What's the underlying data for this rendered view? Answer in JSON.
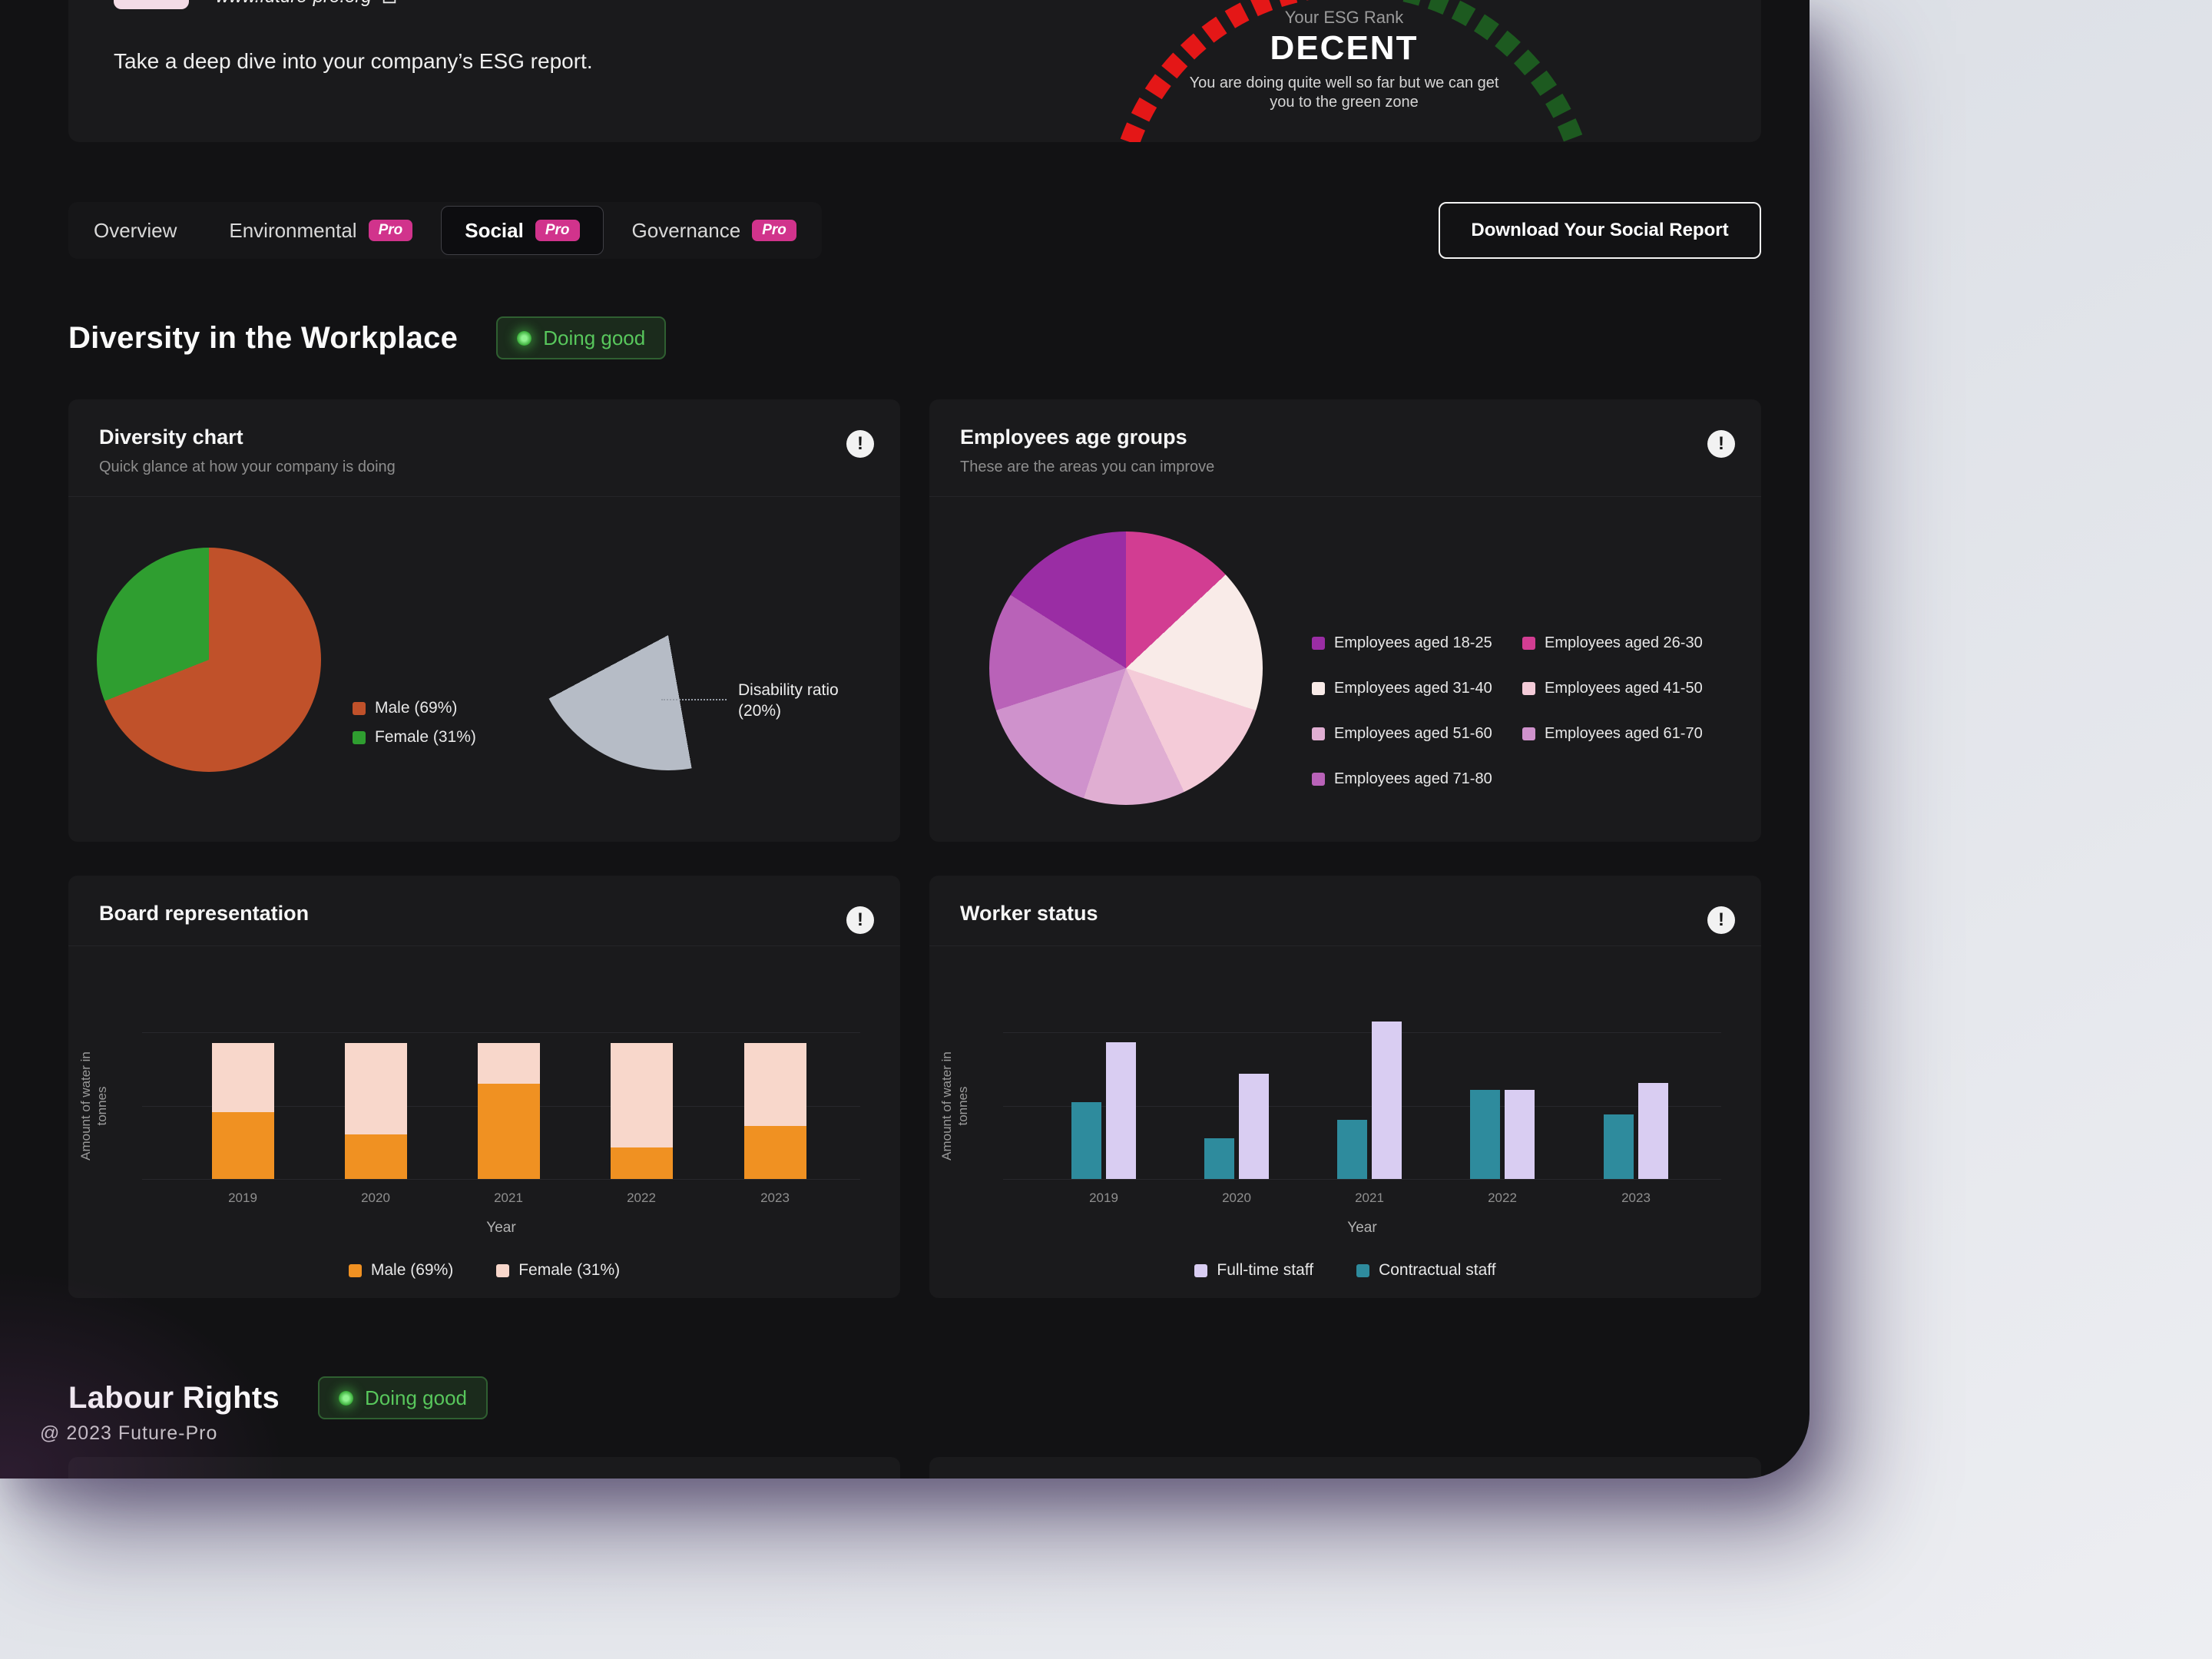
{
  "colors": {
    "accent_pink": "#d1338c",
    "status_green": "#58c75c",
    "panel_bg": "#121214",
    "card_bg": "#1a1a1c",
    "gauge_red": "#e41717",
    "gauge_green": "#1d5a20"
  },
  "header": {
    "site_url": "www.future-pro.org",
    "tagline": "Take a deep dive into your company’s ESG report.",
    "gauge": {
      "label": "Your ESG Rank",
      "rank": "DECENT",
      "description": "You are doing quite well so far but we can get you to the green zone"
    }
  },
  "tabs": {
    "pro_label": "Pro",
    "items": [
      {
        "label": "Overview",
        "pro": false,
        "active": false
      },
      {
        "label": "Environmental",
        "pro": true,
        "active": false
      },
      {
        "label": "Social",
        "pro": true,
        "active": true
      },
      {
        "label": "Governance",
        "pro": true,
        "active": false
      }
    ],
    "download_button_label": "Download Your Social Report"
  },
  "sections": {
    "diversity": {
      "title": "Diversity in the Workplace",
      "badge": "Doing good"
    },
    "labour": {
      "title": "Labour Rights",
      "badge": "Doing good"
    }
  },
  "cards": {
    "diversity_chart": {
      "title": "Diversity chart",
      "subtitle": "Quick glance at how your company is doing",
      "disability_label": "Disability ratio (20%)"
    },
    "age_groups": {
      "title": "Employees age groups",
      "subtitle": "These are the areas you can improve"
    },
    "board": {
      "title": "Board representation"
    },
    "worker": {
      "title": "Worker status"
    }
  },
  "footer": "@ 2023 Future-Pro",
  "chart_data": [
    {
      "id": "gender_pie",
      "type": "pie",
      "title": "Diversity chart",
      "slices": [
        {
          "label": "Male (69%)",
          "value": 69,
          "color": "#c0512a"
        },
        {
          "label": "Female (31%)",
          "value": 31,
          "color": "#2f9e30"
        }
      ]
    },
    {
      "id": "disability_wedge",
      "type": "pie",
      "title": "Disability ratio",
      "start_angle": 170,
      "slices": [
        {
          "label": "Disability ratio (20%)",
          "value": 20,
          "color": "#b6bcc6"
        },
        {
          "label": "",
          "value": 80,
          "color": "transparent"
        }
      ]
    },
    {
      "id": "age_pie",
      "type": "pie",
      "title": "Employees age groups",
      "slices": [
        {
          "label": "Employees aged 26-30",
          "value": 13,
          "color": "#d23d92"
        },
        {
          "label": "Employees aged 31-40",
          "value": 17,
          "color": "#f9ebe8"
        },
        {
          "label": "Employees aged 41-50",
          "value": 13,
          "color": "#f4cbd8"
        },
        {
          "label": "Employees aged 51-60",
          "value": 12,
          "color": "#e0aed2"
        },
        {
          "label": "Employees aged 61-70",
          "value": 15,
          "color": "#cf92cc"
        },
        {
          "label": "Employees aged 71-80",
          "value": 14,
          "color": "#b962b8"
        },
        {
          "label": "Employees aged 18-25",
          "value": 16,
          "color": "#9a2da4"
        }
      ],
      "legend_labels": [
        "Employees aged 18-25",
        "Employees aged 26-30",
        "Employees aged 31-40",
        "Employees aged 41-50",
        "Employees aged 51-60",
        "Employees aged 61-70",
        "Employees aged 71-80"
      ]
    },
    {
      "id": "board_bars",
      "type": "bar",
      "subtype": "stacked",
      "title": "Board representation",
      "categories": [
        "2019",
        "2020",
        "2021",
        "2022",
        "2023"
      ],
      "xlabel": "Year",
      "ylabel": "Amount of water in tonnes",
      "unit": "percent",
      "series": [
        {
          "name": "Male (69%)",
          "color": "#f09122",
          "values": [
            49,
            33,
            70,
            23,
            39
          ]
        },
        {
          "name": "Female (31%)",
          "color": "#f8d7cb",
          "values": [
            51,
            67,
            30,
            77,
            61
          ]
        }
      ]
    },
    {
      "id": "worker_bars",
      "type": "bar",
      "subtype": "grouped",
      "title": "Worker status",
      "categories": [
        "2019",
        "2020",
        "2021",
        "2022",
        "2023"
      ],
      "xlabel": "Year",
      "ylabel": "Amount of water in tonnes",
      "series": [
        {
          "name": "Full-time staff",
          "color": "#d9cdf2",
          "values": [
            100,
            77,
            115,
            65,
            70
          ]
        },
        {
          "name": "Contractual staff",
          "color": "#2e8b9d",
          "values": [
            56,
            30,
            43,
            65,
            47
          ]
        }
      ]
    }
  ]
}
